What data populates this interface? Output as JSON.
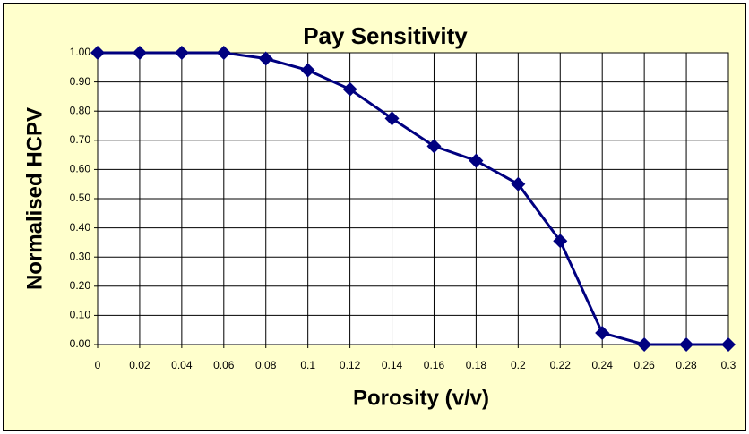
{
  "chart_data": {
    "type": "line",
    "title": "Pay Sensitivity",
    "x_label": "Porosity (v/v)",
    "y_label": "Normalised HCPV",
    "x": [
      0,
      0.02,
      0.04,
      0.06,
      0.08,
      0.1,
      0.12,
      0.14,
      0.16,
      0.18,
      0.2,
      0.22,
      0.24,
      0.26,
      0.28,
      0.3
    ],
    "series": [
      {
        "name": "Normalised HCPV",
        "color": "#000080",
        "values": [
          1.0,
          1.0,
          1.0,
          1.0,
          0.98,
          0.94,
          0.875,
          0.775,
          0.68,
          0.63,
          0.55,
          0.355,
          0.04,
          0,
          0,
          0
        ]
      }
    ],
    "xlim": [
      0,
      0.3
    ],
    "xticks": [
      0,
      0.02,
      0.04,
      0.06,
      0.08,
      0.1,
      0.12,
      0.14,
      0.16,
      0.18,
      0.2,
      0.22,
      0.24,
      0.26,
      0.28,
      0.3
    ],
    "ylim": [
      0,
      1
    ],
    "yticks": [
      {
        "value": 0,
        "label": "0.00"
      },
      {
        "value": 0.1,
        "label": "0.10"
      },
      {
        "value": 0.2,
        "label": "0.20"
      },
      {
        "value": 0.3,
        "label": "0.30"
      },
      {
        "value": 0.4,
        "label": "0.40"
      },
      {
        "value": 0.5,
        "label": "0.50"
      },
      {
        "value": 0.6,
        "label": "0.60"
      },
      {
        "value": 0.7,
        "label": "0.70"
      },
      {
        "value": 0.8,
        "label": "0.80"
      },
      {
        "value": 0.9,
        "label": "0.90"
      },
      {
        "value": 1,
        "label": "1.00"
      }
    ],
    "grid": true
  }
}
